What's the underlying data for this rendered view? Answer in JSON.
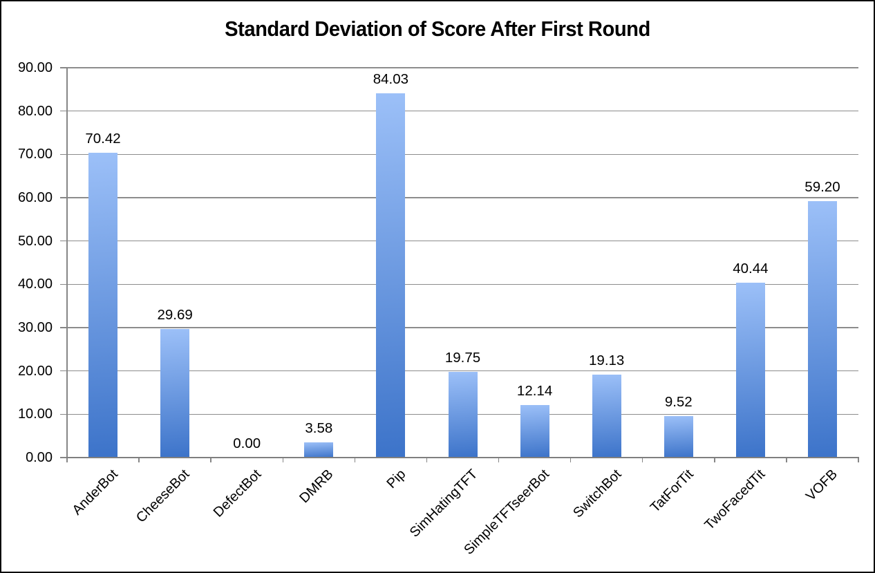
{
  "chart_data": {
    "type": "bar",
    "title": "Standard Deviation of Score After First Round",
    "categories": [
      "AnderBot",
      "CheeseBot",
      "DefectBot",
      "DMRB",
      "Pip",
      "SimHatingTFT",
      "SimpleTFTseerBot",
      "SwitchBot",
      "TatForTit",
      "TwoFacedTit",
      "VOFB"
    ],
    "values": [
      70.42,
      29.69,
      0.0,
      3.58,
      84.03,
      19.75,
      12.14,
      19.13,
      9.52,
      40.44,
      59.2
    ],
    "value_labels": [
      "70.42",
      "29.69",
      "0.00",
      "3.58",
      "84.03",
      "19.75",
      "12.14",
      "19.13",
      "9.52",
      "40.44",
      "59.20"
    ],
    "xlabel": "",
    "ylabel": "",
    "ylim": [
      0,
      90
    ],
    "y_tick_step": 10,
    "y_tick_labels": [
      "0.00",
      "10.00",
      "20.00",
      "30.00",
      "40.00",
      "50.00",
      "60.00",
      "70.00",
      "80.00",
      "90.00"
    ],
    "grid": true,
    "legend": "none",
    "colors": {
      "bar_gradient_top": "#9cc0f8",
      "bar_gradient_bottom": "#3c73c9",
      "gridline": "#8c8c8c",
      "axis": "#7f7f7f",
      "text": "#000000",
      "background": "#ffffff",
      "frame": "#0a0a0a"
    }
  }
}
